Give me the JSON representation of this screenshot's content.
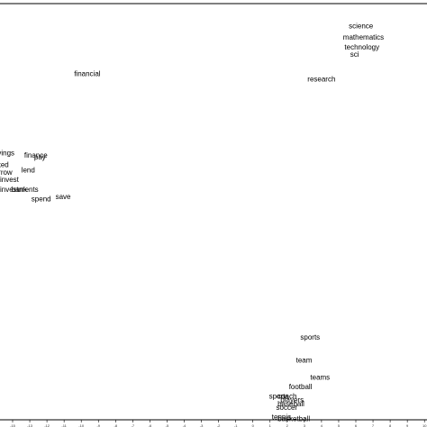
{
  "chart_data": {
    "type": "scatter",
    "title": "",
    "xlabel": "",
    "ylabel": "",
    "xlim": [
      -15.8,
      14.2
    ],
    "ylim": [
      -8.3,
      14.2
    ],
    "grid": false,
    "x_ticks": [
      "-15",
      "-13",
      "-12",
      "-11",
      "-10",
      "-9",
      "-8",
      "-7",
      "-6",
      "-5",
      "-4",
      "-3",
      "-2",
      "-1",
      "0",
      "1",
      "2",
      "3",
      "4",
      "5",
      "6",
      "7",
      "8",
      "9",
      "10"
    ],
    "points": [
      {
        "label": "financial",
        "x": -10.6,
        "y": 10.2
      },
      {
        "label": "research",
        "x": 5.8,
        "y": 9.9
      },
      {
        "label": "science",
        "x": 8.7,
        "y": 12.7
      },
      {
        "label": "mathematics",
        "x": 8.3,
        "y": 12.1
      },
      {
        "label": "technology",
        "x": 8.4,
        "y": 11.6
      },
      {
        "label": "sci",
        "x": 8.8,
        "y": 11.2
      },
      {
        "label": "savings",
        "x": -16.5,
        "y": 6.0
      },
      {
        "label": "finance",
        "x": -14.1,
        "y": 5.9
      },
      {
        "label": "pay",
        "x": -13.4,
        "y": 5.8
      },
      {
        "label": "ked",
        "x": -16.0,
        "y": 5.4
      },
      {
        "label": "lend",
        "x": -14.3,
        "y": 5.1
      },
      {
        "label": "errow",
        "x": -16.2,
        "y": 5.0
      },
      {
        "label": "invest",
        "x": -15.8,
        "y": 4.6
      },
      {
        "label": "investments",
        "x": -15.8,
        "y": 4.1
      },
      {
        "label": "bank",
        "x": -15.0,
        "y": 4.1
      },
      {
        "label": "spend",
        "x": -13.6,
        "y": 3.6
      },
      {
        "label": "save",
        "x": -11.9,
        "y": 3.7
      },
      {
        "label": "sports",
        "x": 5.3,
        "y": -3.7
      },
      {
        "label": "team",
        "x": 5.0,
        "y": -4.9
      },
      {
        "label": "teams",
        "x": 6.0,
        "y": -5.8
      },
      {
        "label": "football",
        "x": 4.5,
        "y": -6.3
      },
      {
        "label": "coach",
        "x": 3.7,
        "y": -6.8
      },
      {
        "label": "sports",
        "x": 3.1,
        "y": -6.8
      },
      {
        "label": "players",
        "x": 3.9,
        "y": -7.0
      },
      {
        "label": "baseball",
        "x": 3.7,
        "y": -7.2
      },
      {
        "label": "soccer",
        "x": 3.6,
        "y": -7.4
      },
      {
        "label": "tennis",
        "x": 3.3,
        "y": -7.9
      },
      {
        "label": "basketball",
        "x": 3.7,
        "y": -8.0
      }
    ]
  }
}
